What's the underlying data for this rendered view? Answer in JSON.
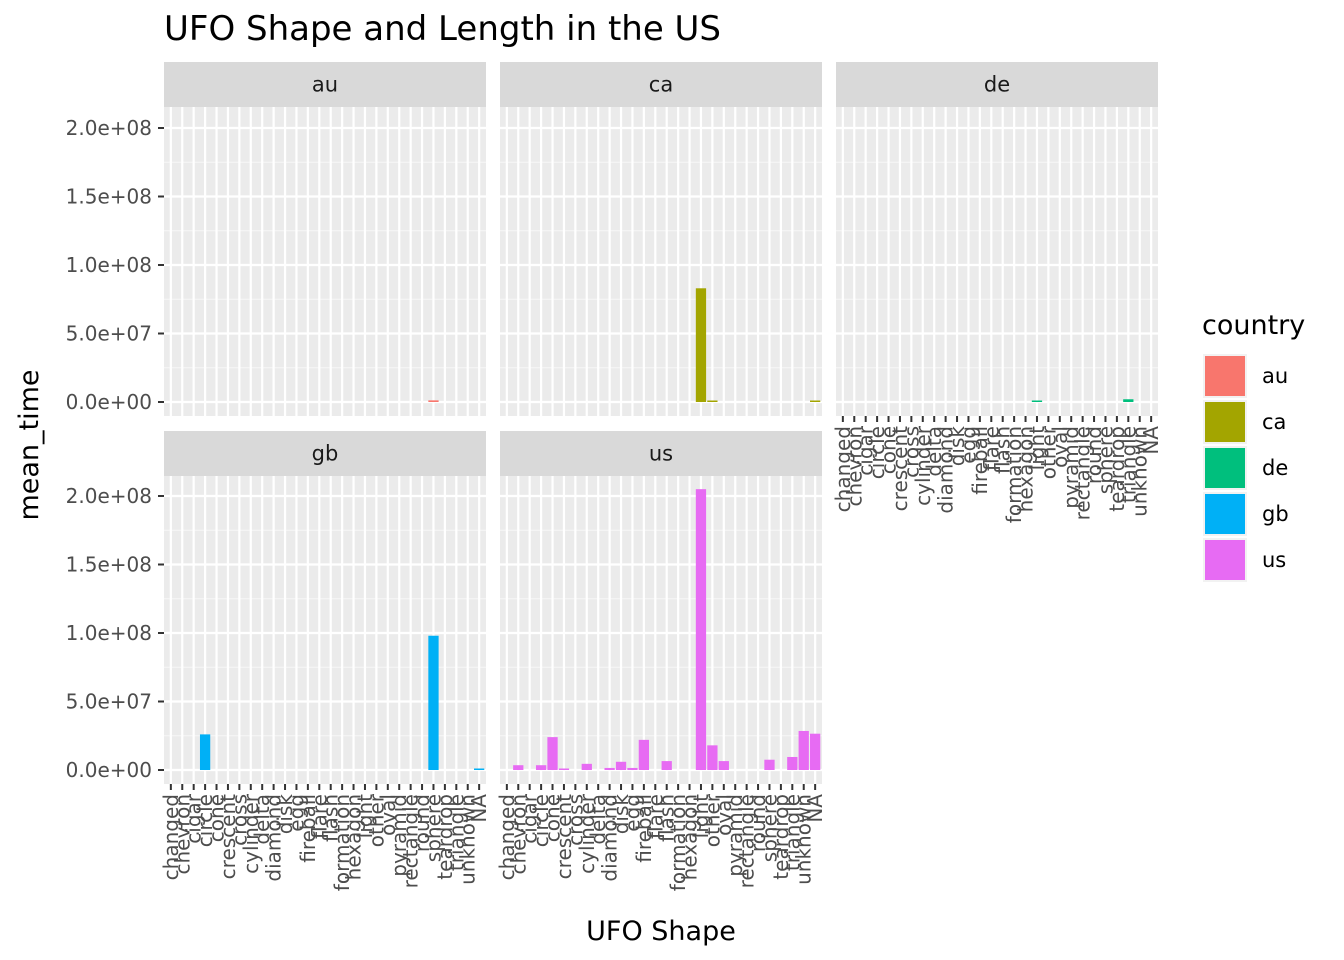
{
  "chart_data": {
    "type": "bar",
    "title": "UFO Shape and Length in the US",
    "xlabel": "UFO Shape",
    "ylabel": "mean_time",
    "ylim": [
      0,
      210000000
    ],
    "y_ticks": [
      0,
      50000000,
      100000000,
      150000000,
      200000000
    ],
    "y_tick_labels": [
      "0.0e+00",
      "5.0e+07",
      "1.0e+08",
      "1.5e+08",
      "2.0e+08"
    ],
    "grid": true,
    "legend": {
      "title": "country",
      "position": "right",
      "entries": [
        {
          "label": "au",
          "color": "#F8766D"
        },
        {
          "label": "ca",
          "color": "#A3A500"
        },
        {
          "label": "de",
          "color": "#00BF7D"
        },
        {
          "label": "gb",
          "color": "#00B0F6"
        },
        {
          "label": "us",
          "color": "#E76BF3"
        }
      ]
    },
    "categories": [
      "changed",
      "chevron",
      "cigar",
      "circle",
      "cone",
      "crescent",
      "cross",
      "cylinder",
      "delta",
      "diamond",
      "disk",
      "egg",
      "fireball",
      "flare",
      "flash",
      "formation",
      "hexagon",
      "light",
      "other",
      "oval",
      "pyramid",
      "rectangle",
      "round",
      "sphere",
      "teardrop",
      "triangle",
      "unknown",
      "NA"
    ],
    "facets": [
      {
        "name": "au",
        "color": "#F8766D",
        "values": {
          "sphere": 1200000
        }
      },
      {
        "name": "ca",
        "color": "#A3A500",
        "values": {
          "light": 83000000,
          "other": 600000,
          "NA": 400000
        }
      },
      {
        "name": "de",
        "color": "#00BF7D",
        "values": {
          "light": 500000,
          "triangle": 2000000
        }
      },
      {
        "name": "gb",
        "color": "#00B0F6",
        "values": {
          "circle": 26000000,
          "sphere": 98000000,
          "NA": 1000000
        }
      },
      {
        "name": "us",
        "color": "#E76BF3",
        "values": {
          "chevron": 3500000,
          "circle": 3500000,
          "cone": 24000000,
          "crescent": 800000,
          "cylinder": 4500000,
          "diamond": 1500000,
          "disk": 6000000,
          "egg": 1500000,
          "fireball": 22000000,
          "flash": 6500000,
          "light": 205000000,
          "other": 18000000,
          "oval": 6500000,
          "sphere": 7500000,
          "triangle": 9500000,
          "unknown": 28500000,
          "NA": 26500000
        }
      }
    ]
  }
}
